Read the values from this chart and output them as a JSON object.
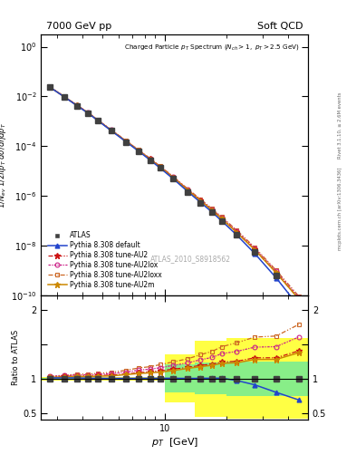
{
  "title_left": "7000 GeV pp",
  "title_right": "Soft QCD",
  "watermark": "ATLAS_2010_S8918562",
  "xlabel": "p_{T}  [GeV]",
  "right_label": "mcplots.cern.ch [arXiv:1306.3436]",
  "right_label2": "Rivet 3.1.10, ≥ 2.6M events",
  "xlim": [
    2.5,
    50
  ],
  "ylim_main": [
    1e-10,
    3.0
  ],
  "ylim_ratio": [
    0.4,
    2.2
  ],
  "pt_atlas": [
    2.75,
    3.25,
    3.75,
    4.25,
    4.75,
    5.5,
    6.5,
    7.5,
    8.5,
    9.5,
    11.0,
    13.0,
    15.0,
    17.0,
    19.0,
    22.5,
    27.5,
    35.0,
    45.0
  ],
  "val_atlas": [
    0.024,
    0.0095,
    0.0042,
    0.0021,
    0.00105,
    0.00042,
    0.00015,
    6.2e-05,
    2.8e-05,
    1.35e-05,
    5e-06,
    1.5e-06,
    5.5e-07,
    2.3e-07,
    1e-07,
    2.8e-08,
    5.5e-09,
    6.5e-10,
    5.5e-11
  ],
  "err_atlas_lo": [
    0.0005,
    0.0002,
    9e-05,
    4.5e-05,
    2.2e-05,
    9e-06,
    3e-06,
    1.3e-06,
    5.5e-07,
    2.6e-07,
    1e-07,
    3e-08,
    1.2e-08,
    5e-09,
    2.5e-09,
    7e-10,
    1.4e-10,
    1.8e-11,
    1.5e-12
  ],
  "err_atlas_hi": [
    0.0005,
    0.0002,
    9e-05,
    4.5e-05,
    2.2e-05,
    9e-06,
    3e-06,
    1.3e-06,
    5.5e-07,
    2.6e-07,
    1e-07,
    3e-08,
    1.2e-08,
    5e-09,
    2.5e-09,
    7e-10,
    1.4e-10,
    1.8e-11,
    1.5e-12
  ],
  "pt_mc": [
    2.75,
    3.25,
    3.75,
    4.25,
    4.75,
    5.5,
    6.5,
    7.5,
    8.5,
    9.5,
    11.0,
    13.0,
    15.0,
    17.0,
    19.0,
    22.5,
    27.5,
    35.0,
    45.0
  ],
  "val_default": [
    0.0242,
    0.0096,
    0.00424,
    0.00211,
    0.001055,
    0.000421,
    0.0001505,
    6.22e-05,
    2.81e-05,
    1.355e-05,
    5.02e-06,
    1.502e-06,
    5.52e-07,
    2.31e-07,
    1.005e-07,
    2.72e-08,
    5e-09,
    5.2e-10,
    3.8e-11
  ],
  "val_AU2": [
    0.0246,
    0.0098,
    0.00436,
    0.00218,
    0.001095,
    0.000441,
    0.00016,
    6.72e-05,
    3.08e-05,
    1.5e-05,
    5.68e-06,
    1.74e-06,
    6.55e-07,
    2.78e-07,
    1.24e-07,
    3.5e-08,
    7.15e-09,
    8.45e-10,
    7.7e-11
  ],
  "val_AU2lox": [
    0.0247,
    0.0099,
    0.00442,
    0.00221,
    0.001112,
    0.00045,
    0.000164,
    6.95e-05,
    3.18e-05,
    1.56e-05,
    5.95e-06,
    1.84e-06,
    7e-07,
    3e-07,
    1.36e-07,
    3.9e-08,
    8e-09,
    9.5e-10,
    8.8e-11
  ],
  "val_AU2loxx": [
    0.0248,
    0.00995,
    0.00446,
    0.00224,
    0.001128,
    0.000458,
    0.000168,
    7.15e-05,
    3.28e-05,
    1.62e-05,
    6.2e-06,
    1.93e-06,
    7.4e-07,
    3.2e-07,
    1.46e-07,
    4.25e-08,
    8.8e-09,
    1.05e-09,
    9.8e-11
  ],
  "val_AU2m": [
    0.0244,
    0.00972,
    0.00432,
    0.00216,
    0.001085,
    0.000436,
    0.0001585,
    6.65e-05,
    3.03e-05,
    1.475e-05,
    5.58e-06,
    1.72e-06,
    6.45e-07,
    2.74e-07,
    1.22e-07,
    3.44e-08,
    7.02e-09,
    8.3e-10,
    7.55e-11
  ],
  "ratio_yellow_x": [
    2.5,
    10.0,
    10.0,
    14.0,
    14.0,
    20.0,
    20.0,
    50.0
  ],
  "ratio_yellow_lo": [
    0.975,
    0.975,
    0.65,
    0.65,
    0.45,
    0.45,
    0.42,
    0.42
  ],
  "ratio_yellow_hi": [
    1.025,
    1.025,
    1.35,
    1.35,
    1.55,
    1.55,
    1.58,
    1.58
  ],
  "ratio_green_x": [
    2.5,
    10.0,
    10.0,
    14.0,
    14.0,
    20.0,
    20.0,
    50.0
  ],
  "ratio_green_lo": [
    0.99,
    0.99,
    0.8,
    0.8,
    0.77,
    0.77,
    0.75,
    0.75
  ],
  "ratio_green_hi": [
    1.01,
    1.01,
    1.2,
    1.2,
    1.23,
    1.23,
    1.25,
    1.25
  ],
  "color_atlas": "#404040",
  "color_default": "#2244cc",
  "color_AU2": "#cc1111",
  "color_AU2lox": "#cc2288",
  "color_AU2loxx": "#cc6622",
  "color_AU2m": "#cc8800",
  "color_yellow": "#ffff44",
  "color_green": "#88ee88"
}
